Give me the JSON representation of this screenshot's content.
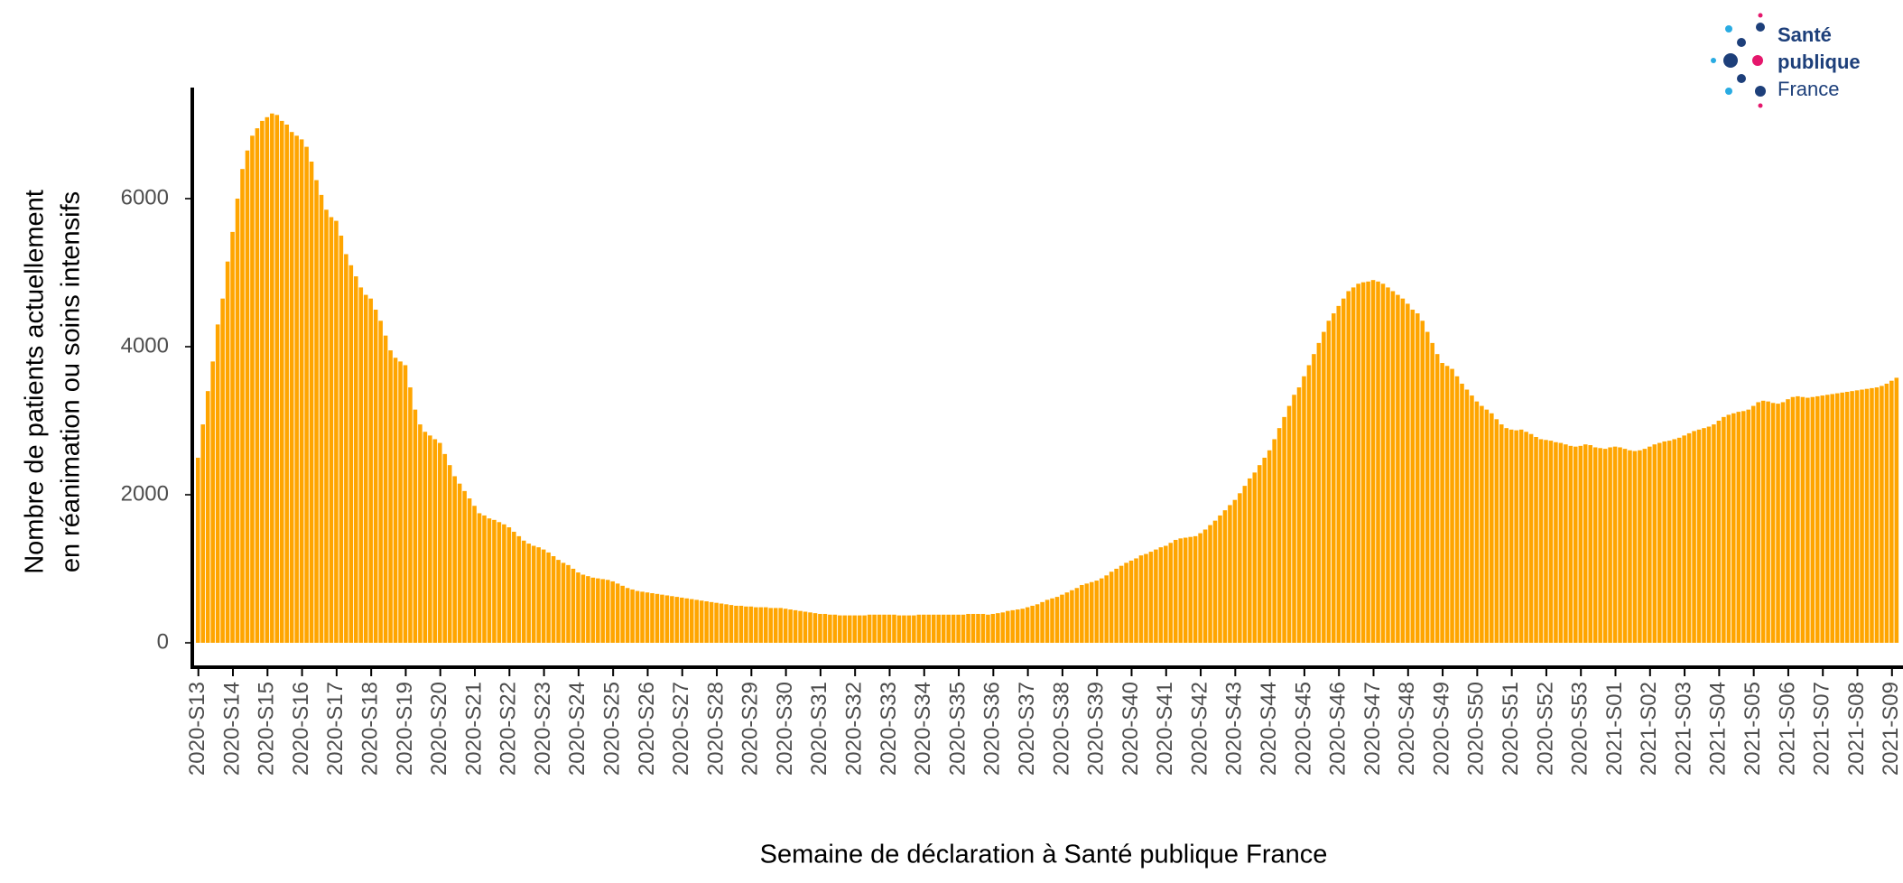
{
  "chart_data": {
    "type": "bar",
    "ylabel": [
      "Nombre de patients actuellement",
      "en réanimation ou soins intensifs"
    ],
    "xlabel": "Semaine de déclaration à Santé publique France",
    "color": "#ffa500",
    "ylim": [
      -330,
      7500
    ],
    "yticks": [
      0,
      2000,
      4000,
      6000
    ],
    "grid": false,
    "categories": [
      "2020-S13",
      null,
      null,
      null,
      null,
      null,
      null,
      "2020-S14",
      null,
      null,
      null,
      null,
      null,
      null,
      "2020-S15",
      null,
      null,
      null,
      null,
      null,
      null,
      "2020-S16",
      null,
      null,
      null,
      null,
      null,
      null,
      "2020-S17",
      null,
      null,
      null,
      null,
      null,
      null,
      "2020-S18",
      null,
      null,
      null,
      null,
      null,
      null,
      "2020-S19",
      null,
      null,
      null,
      null,
      null,
      null,
      "2020-S20",
      null,
      null,
      null,
      null,
      null,
      null,
      "2020-S21",
      null,
      null,
      null,
      null,
      null,
      null,
      "2020-S22",
      null,
      null,
      null,
      null,
      null,
      null,
      "2020-S23",
      null,
      null,
      null,
      null,
      null,
      null,
      "2020-S24",
      null,
      null,
      null,
      null,
      null,
      null,
      "2020-S25",
      null,
      null,
      null,
      null,
      null,
      null,
      "2020-S26",
      null,
      null,
      null,
      null,
      null,
      null,
      "2020-S27",
      null,
      null,
      null,
      null,
      null,
      null,
      "2020-S28",
      null,
      null,
      null,
      null,
      null,
      null,
      "2020-S29",
      null,
      null,
      null,
      null,
      null,
      null,
      "2020-S30",
      null,
      null,
      null,
      null,
      null,
      null,
      "2020-S31",
      null,
      null,
      null,
      null,
      null,
      null,
      "2020-S32",
      null,
      null,
      null,
      null,
      null,
      null,
      "2020-S33",
      null,
      null,
      null,
      null,
      null,
      null,
      "2020-S34",
      null,
      null,
      null,
      null,
      null,
      null,
      "2020-S35",
      null,
      null,
      null,
      null,
      null,
      null,
      "2020-S36",
      null,
      null,
      null,
      null,
      null,
      null,
      "2020-S37",
      null,
      null,
      null,
      null,
      null,
      null,
      "2020-S38",
      null,
      null,
      null,
      null,
      null,
      null,
      "2020-S39",
      null,
      null,
      null,
      null,
      null,
      null,
      "2020-S40",
      null,
      null,
      null,
      null,
      null,
      null,
      "2020-S41",
      null,
      null,
      null,
      null,
      null,
      null,
      "2020-S42",
      null,
      null,
      null,
      null,
      null,
      null,
      "2020-S43",
      null,
      null,
      null,
      null,
      null,
      null,
      "2020-S44",
      null,
      null,
      null,
      null,
      null,
      null,
      "2020-S45",
      null,
      null,
      null,
      null,
      null,
      null,
      "2020-S46",
      null,
      null,
      null,
      null,
      null,
      null,
      "2020-S47",
      null,
      null,
      null,
      null,
      null,
      null,
      "2020-S48",
      null,
      null,
      null,
      null,
      null,
      null,
      "2020-S49",
      null,
      null,
      null,
      null,
      null,
      null,
      "2020-S50",
      null,
      null,
      null,
      null,
      null,
      null,
      "2020-S51",
      null,
      null,
      null,
      null,
      null,
      null,
      "2020-S52",
      null,
      null,
      null,
      null,
      null,
      null,
      "2020-S53",
      null,
      null,
      null,
      null,
      null,
      null,
      "2021-S01",
      null,
      null,
      null,
      null,
      null,
      null,
      "2021-S02",
      null,
      null,
      null,
      null,
      null,
      null,
      "2021-S03",
      null,
      null,
      null,
      null,
      null,
      null,
      "2021-S04",
      null,
      null,
      null,
      null,
      null,
      null,
      "2021-S05",
      null,
      null,
      null,
      null,
      null,
      null,
      "2021-S06",
      null,
      null,
      null,
      null,
      null,
      null,
      "2021-S07",
      null,
      null,
      null,
      null,
      null,
      null,
      "2021-S08",
      null,
      null,
      null,
      null,
      null,
      null,
      "2021-S09",
      null
    ],
    "values": [
      2500,
      2950,
      3400,
      3800,
      4300,
      4650,
      5150,
      5550,
      6000,
      6400,
      6650,
      6850,
      6950,
      7050,
      7100,
      7150,
      7130,
      7050,
      7000,
      6900,
      6850,
      6800,
      6700,
      6500,
      6250,
      6050,
      5850,
      5750,
      5700,
      5500,
      5250,
      5100,
      4950,
      4800,
      4700,
      4650,
      4500,
      4350,
      4150,
      3950,
      3850,
      3800,
      3750,
      3450,
      3150,
      2950,
      2850,
      2800,
      2750,
      2700,
      2550,
      2400,
      2250,
      2150,
      2050,
      1950,
      1850,
      1750,
      1720,
      1680,
      1660,
      1630,
      1600,
      1560,
      1500,
      1440,
      1380,
      1340,
      1310,
      1290,
      1260,
      1220,
      1170,
      1120,
      1080,
      1050,
      1000,
      950,
      920,
      900,
      880,
      870,
      860,
      850,
      830,
      800,
      770,
      740,
      720,
      700,
      690,
      680,
      670,
      660,
      650,
      640,
      630,
      620,
      610,
      600,
      590,
      580,
      570,
      560,
      550,
      540,
      530,
      520,
      510,
      500,
      500,
      490,
      490,
      480,
      480,
      480,
      470,
      470,
      470,
      460,
      450,
      440,
      430,
      420,
      410,
      400,
      390,
      390,
      380,
      380,
      370,
      370,
      370,
      370,
      370,
      370,
      380,
      380,
      380,
      380,
      380,
      380,
      370,
      370,
      370,
      370,
      380,
      380,
      380,
      380,
      380,
      380,
      380,
      380,
      380,
      380,
      390,
      390,
      390,
      390,
      380,
      390,
      400,
      410,
      430,
      440,
      450,
      460,
      480,
      500,
      520,
      550,
      580,
      600,
      620,
      650,
      680,
      710,
      740,
      780,
      800,
      820,
      840,
      870,
      910,
      960,
      1000,
      1040,
      1080,
      1110,
      1140,
      1180,
      1200,
      1230,
      1260,
      1290,
      1310,
      1350,
      1390,
      1410,
      1420,
      1430,
      1440,
      1480,
      1530,
      1590,
      1650,
      1720,
      1790,
      1860,
      1930,
      2020,
      2120,
      2220,
      2300,
      2400,
      2500,
      2600,
      2750,
      2900,
      3050,
      3200,
      3350,
      3450,
      3600,
      3750,
      3900,
      4050,
      4200,
      4350,
      4450,
      4550,
      4650,
      4750,
      4800,
      4850,
      4870,
      4880,
      4900,
      4880,
      4850,
      4800,
      4750,
      4700,
      4650,
      4580,
      4500,
      4450,
      4350,
      4200,
      4050,
      3900,
      3780,
      3740,
      3700,
      3600,
      3500,
      3420,
      3340,
      3260,
      3200,
      3150,
      3100,
      3020,
      2950,
      2900,
      2880,
      2870,
      2880,
      2850,
      2820,
      2780,
      2750,
      2740,
      2730,
      2710,
      2700,
      2680,
      2660,
      2650,
      2660,
      2680,
      2670,
      2640,
      2630,
      2620,
      2640,
      2650,
      2640,
      2620,
      2600,
      2590,
      2600,
      2620,
      2650,
      2680,
      2700,
      2720,
      2730,
      2750,
      2770,
      2800,
      2830,
      2860,
      2880,
      2900,
      2920,
      2950,
      3000,
      3050,
      3080,
      3100,
      3120,
      3130,
      3150,
      3200,
      3250,
      3270,
      3260,
      3240,
      3230,
      3250,
      3290,
      3320,
      3330,
      3320,
      3310,
      3320,
      3330,
      3340,
      3350,
      3360,
      3370,
      3380,
      3390,
      3400,
      3410,
      3420,
      3430,
      3440,
      3450,
      3470,
      3500,
      3540,
      3580
    ]
  },
  "logo": [
    "Santé",
    "publique",
    "France"
  ]
}
